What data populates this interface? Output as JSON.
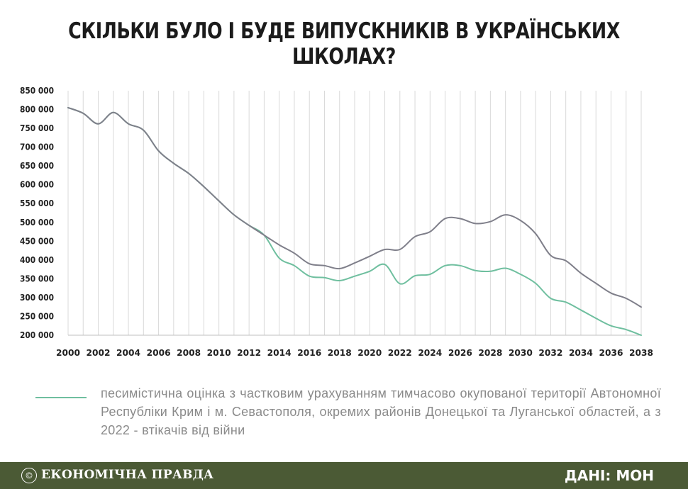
{
  "title": "СКІЛЬКИ БУЛО І БУДЕ ВИПУСКНИКІВ В УКРАЇНСЬКИХ ШКОЛАХ?",
  "legend": {
    "text": "песимістична оцінка з частковим урахуванням тимчасово окупованої території Автономної Республіки Крим і м. Севастополя, окремих районів Донецької та Луганської областей, а з 2022 - втікачів від війни",
    "color": "#6fbf9f"
  },
  "footer": {
    "logo_symbol": "©",
    "brand": "ЕКОНОМІЧНА ПРАВДА",
    "source": "ДАНІ: МОН",
    "bg_color": "#4b5a35"
  },
  "chart_data": {
    "type": "line",
    "title": "",
    "xlabel": "",
    "ylabel": "",
    "xlim": [
      2000,
      2038
    ],
    "ylim": [
      200000,
      850000
    ],
    "x_ticks": [
      "2000",
      "2002",
      "2004",
      "2006",
      "2008",
      "2010",
      "2012",
      "2014",
      "2016",
      "2018",
      "2020",
      "2022",
      "2024",
      "2026",
      "2028",
      "2030",
      "2032",
      "2034",
      "2036",
      "2038"
    ],
    "y_ticks": [
      "200 000",
      "250 000",
      "300 000",
      "350 000",
      "400 000",
      "450 000",
      "500 000",
      "550 000",
      "600 000",
      "650 000",
      "700 000",
      "750 000",
      "800 000",
      "850 000"
    ],
    "grid": "vertical",
    "x": [
      2000,
      2001,
      2002,
      2003,
      2004,
      2005,
      2006,
      2007,
      2008,
      2009,
      2010,
      2011,
      2012,
      2013,
      2014,
      2015,
      2016,
      2017,
      2018,
      2019,
      2020,
      2021,
      2022,
      2023,
      2024,
      2025,
      2026,
      2027,
      2028,
      2029,
      2030,
      2031,
      2032,
      2033,
      2034,
      2035,
      2036,
      2037,
      2038
    ],
    "series": [
      {
        "color": "#7f7f8a",
        "values": [
          805000,
          790000,
          762000,
          792000,
          762000,
          745000,
          690000,
          657000,
          630000,
          595000,
          557000,
          520000,
          492000,
          466000,
          440000,
          418000,
          390000,
          385000,
          377000,
          392000,
          410000,
          428000,
          428000,
          462000,
          475000,
          510000,
          510000,
          497000,
          502000,
          520000,
          505000,
          470000,
          412000,
          398000,
          365000,
          338000,
          312000,
          298000,
          275000
        ]
      },
      {
        "color": "#6fbf9f",
        "values": [
          805000,
          790000,
          762000,
          792000,
          762000,
          745000,
          690000,
          657000,
          630000,
          595000,
          557000,
          520000,
          492000,
          466000,
          405000,
          385000,
          357000,
          353000,
          345000,
          357000,
          370000,
          388000,
          337000,
          358000,
          362000,
          385000,
          385000,
          372000,
          370000,
          378000,
          362000,
          338000,
          298000,
          288000,
          267000,
          245000,
          225000,
          215000,
          200000
        ]
      }
    ]
  }
}
